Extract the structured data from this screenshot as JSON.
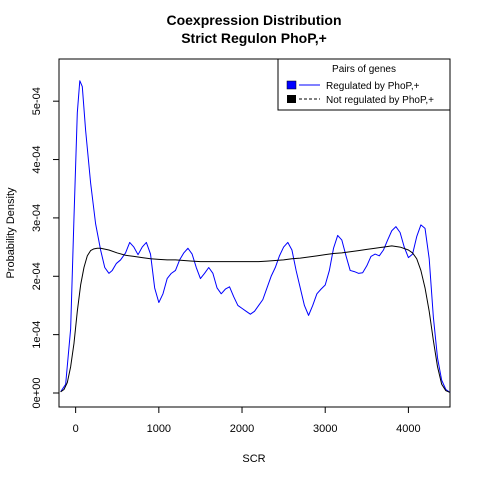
{
  "chart_data": {
    "type": "line",
    "title": [
      "Coexpression Distribution",
      "Strict Regulon PhoP,+"
    ],
    "xlabel": "SCR",
    "ylabel": "Probability Density",
    "xlim": [
      -200,
      4500
    ],
    "ylim": [
      0,
      0.00055
    ],
    "xticks": [
      0,
      1000,
      2000,
      3000,
      4000
    ],
    "xtick_labels": [
      "0",
      "1000",
      "2000",
      "3000",
      "4000"
    ],
    "yticks": [
      0,
      0.0001,
      0.0002,
      0.0003,
      0.0004,
      0.0005
    ],
    "ytick_labels": [
      "0e+00",
      "1e-04",
      "2e-04",
      "3e-04",
      "4e-04",
      "5e-04"
    ],
    "grid": false,
    "legend": {
      "title": "Pairs of genes",
      "placement": "top-right",
      "entries": [
        "Regulated by  PhoP,+",
        "Not regulated by  PhoP,+"
      ]
    },
    "series": [
      {
        "name": "Regulated by  PhoP,+",
        "color": "#0000ff",
        "x": [
          -180,
          -120,
          -60,
          -20,
          20,
          50,
          80,
          120,
          180,
          240,
          300,
          350,
          400,
          440,
          490,
          540,
          600,
          650,
          700,
          750,
          800,
          850,
          900,
          950,
          1000,
          1050,
          1100,
          1150,
          1200,
          1250,
          1300,
          1350,
          1400,
          1450,
          1500,
          1550,
          1600,
          1650,
          1700,
          1750,
          1800,
          1850,
          1900,
          1950,
          2000,
          2050,
          2100,
          2150,
          2200,
          2250,
          2300,
          2350,
          2400,
          2450,
          2500,
          2550,
          2600,
          2650,
          2700,
          2750,
          2800,
          2850,
          2900,
          2950,
          3000,
          3050,
          3100,
          3150,
          3200,
          3250,
          3300,
          3350,
          3400,
          3450,
          3500,
          3550,
          3600,
          3650,
          3700,
          3750,
          3800,
          3850,
          3900,
          3950,
          4000,
          4050,
          4100,
          4150,
          4200,
          4250,
          4300,
          4350,
          4400,
          4450,
          4500
        ],
        "y": [
          2e-06,
          1.5e-05,
          0.00011,
          0.0003,
          0.00048,
          0.000535,
          0.000525,
          0.00045,
          0.00036,
          0.00029,
          0.000245,
          0.000215,
          0.000205,
          0.00021,
          0.000222,
          0.000228,
          0.00024,
          0.000258,
          0.00025,
          0.000237,
          0.00025,
          0.000258,
          0.000238,
          0.00018,
          0.000155,
          0.00017,
          0.000196,
          0.000205,
          0.00021,
          0.000228,
          0.00024,
          0.000248,
          0.000238,
          0.000215,
          0.000196,
          0.000205,
          0.000215,
          0.000205,
          0.00018,
          0.00017,
          0.000178,
          0.000182,
          0.000165,
          0.00015,
          0.000145,
          0.00014,
          0.000135,
          0.00014,
          0.00015,
          0.00016,
          0.00018,
          0.0002,
          0.000215,
          0.000235,
          0.00025,
          0.000258,
          0.000245,
          0.00021,
          0.00018,
          0.00015,
          0.000133,
          0.00015,
          0.00017,
          0.000178,
          0.000185,
          0.00021,
          0.000248,
          0.00027,
          0.000262,
          0.000235,
          0.00021,
          0.000208,
          0.000205,
          0.000206,
          0.000218,
          0.000234,
          0.000238,
          0.000235,
          0.000245,
          0.000262,
          0.000278,
          0.000285,
          0.000275,
          0.00025,
          0.000232,
          0.000238,
          0.000268,
          0.000288,
          0.000282,
          0.00023,
          0.00013,
          6e-05,
          2.2e-05,
          6e-06,
          1e-06
        ]
      },
      {
        "name": "Not regulated by  PhoP,+",
        "color": "#000000",
        "x": [
          -180,
          -140,
          -100,
          -60,
          -20,
          20,
          60,
          100,
          140,
          180,
          220,
          260,
          300,
          400,
          500,
          600,
          700,
          800,
          900,
          1000,
          1100,
          1200,
          1300,
          1400,
          1500,
          1600,
          1700,
          1800,
          1900,
          2000,
          2100,
          2200,
          2300,
          2400,
          2500,
          2600,
          2700,
          2800,
          2900,
          3000,
          3100,
          3200,
          3300,
          3400,
          3500,
          3600,
          3700,
          3800,
          3900,
          4000,
          4050,
          4100,
          4150,
          4200,
          4250,
          4300,
          4350,
          4400,
          4450,
          4500
        ],
        "y": [
          2e-06,
          6e-06,
          1.8e-05,
          4.5e-05,
          8.5e-05,
          0.00014,
          0.000185,
          0.000215,
          0.000235,
          0.000244,
          0.000247,
          0.000248,
          0.000248,
          0.000245,
          0.00024,
          0.000236,
          0.000234,
          0.000232,
          0.00023,
          0.000229,
          0.000228,
          0.000228,
          0.000227,
          0.000226,
          0.000225,
          0.000225,
          0.000225,
          0.000225,
          0.000225,
          0.000225,
          0.000225,
          0.000225,
          0.000226,
          0.000227,
          0.000228,
          0.00023,
          0.000231,
          0.000233,
          0.000235,
          0.000237,
          0.000239,
          0.00024,
          0.000242,
          0.000244,
          0.000246,
          0.000248,
          0.00025,
          0.000252,
          0.00025,
          0.000245,
          0.00024,
          0.00023,
          0.00021,
          0.00018,
          0.00014,
          9e-05,
          4.5e-05,
          1.5e-05,
          4e-06,
          1e-06
        ]
      }
    ]
  }
}
